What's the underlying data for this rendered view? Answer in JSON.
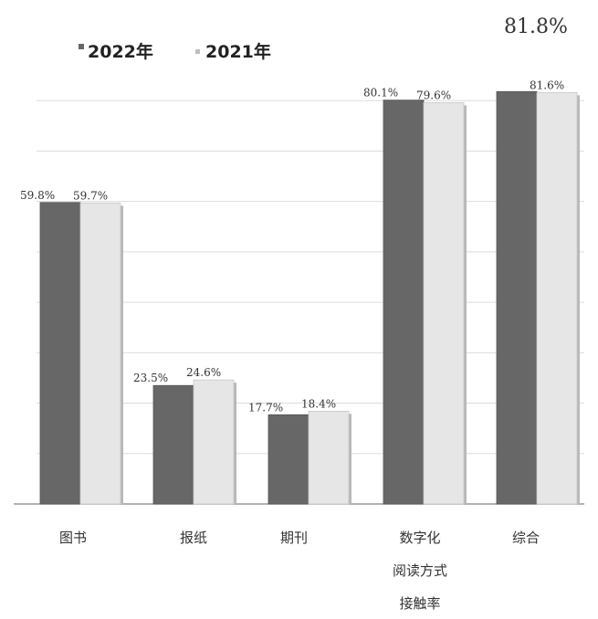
{
  "colors": {
    "series_2022": "#676767",
    "series_2021": "#e6e6e6",
    "grid": "#dddddd",
    "baseline": "#9a9a9a"
  },
  "chart_data": {
    "type": "bar",
    "title": "",
    "xlabel": "",
    "ylabel": "",
    "ylim": [
      0,
      90
    ],
    "grid": true,
    "legend_position": "top-left",
    "categories": [
      [
        "图书"
      ],
      [
        "报纸"
      ],
      [
        "期刊"
      ],
      [
        "数字化",
        "阅读方式",
        "接触率"
      ],
      [
        "综合"
      ]
    ],
    "series": [
      {
        "name": "2022年",
        "values": [
          59.8,
          23.5,
          17.7,
          80.1,
          81.8
        ],
        "labels": [
          "59.8%",
          "23.5%",
          "17.7%",
          "80.1%",
          "81.8%"
        ]
      },
      {
        "name": "2021年",
        "values": [
          59.7,
          24.6,
          18.4,
          79.6,
          81.6
        ],
        "labels": [
          "59.7%",
          "24.6%",
          "18.4%",
          "79.6%",
          "81.6%"
        ]
      }
    ]
  }
}
